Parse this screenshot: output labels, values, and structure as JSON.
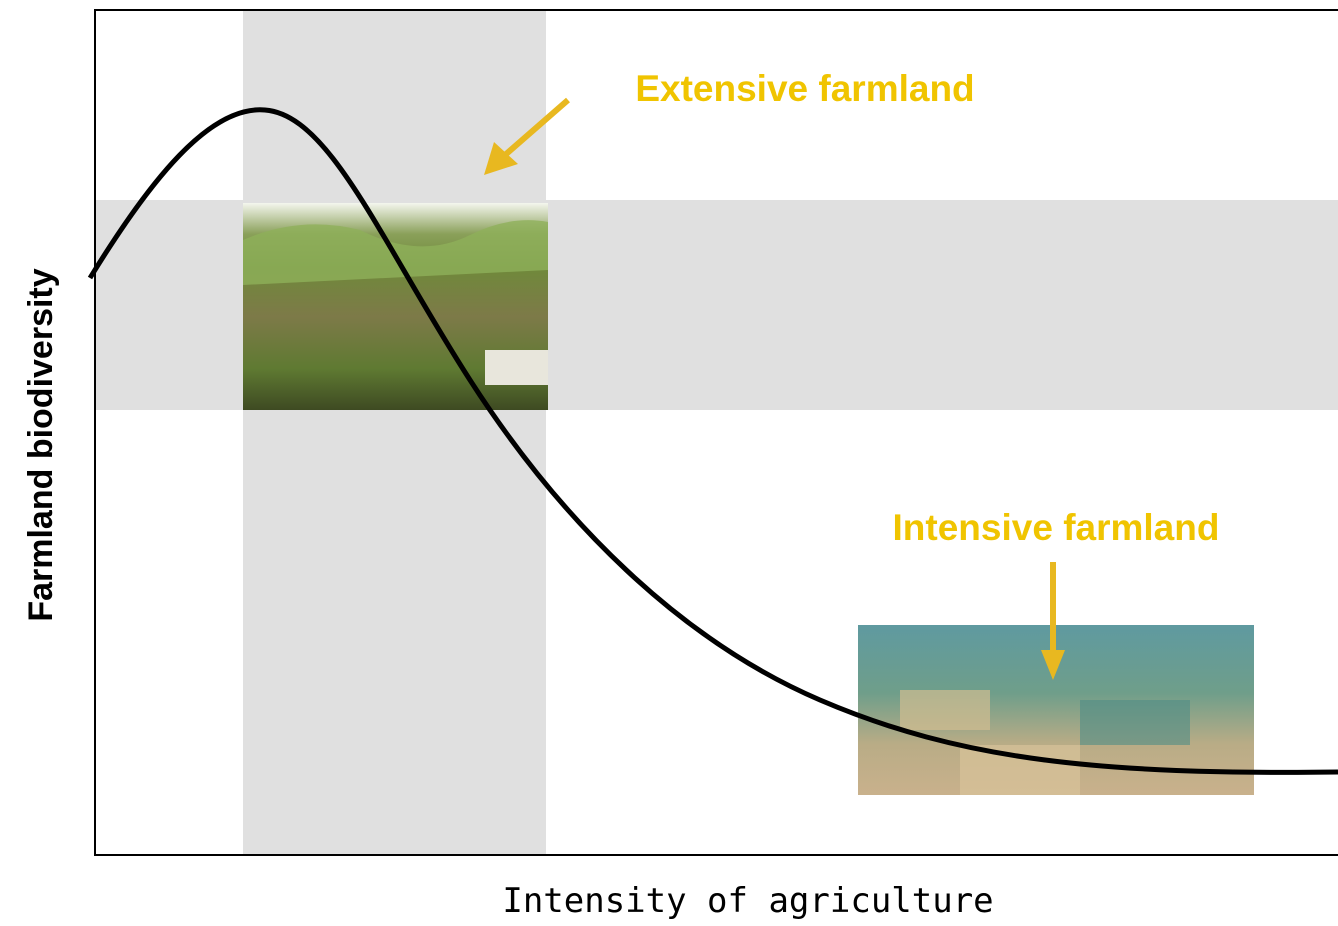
{
  "diagram": {
    "y_axis_label": "Farmland biodiversity",
    "x_axis_label": "Intensity of agriculture",
    "annotations": [
      {
        "label": "Extensive farmland"
      },
      {
        "label": "Intensive farmland"
      }
    ]
  }
}
